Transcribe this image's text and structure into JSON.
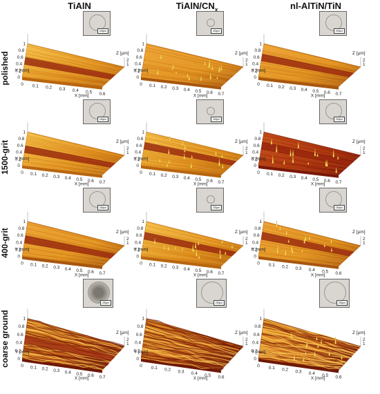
{
  "columns": [
    {
      "title": "TiAlN",
      "sub": ""
    },
    {
      "title": "TiAlN/CN",
      "sub": "x"
    },
    {
      "title": "nl-AlTiN/TiN",
      "sub": ""
    }
  ],
  "rows": [
    "polished",
    "1500-grit",
    "400-grit",
    "coarse ground"
  ],
  "axes": {
    "x_label": "X [mm]",
    "y_label": "Y [mm]",
    "z_label": "Z [µm]",
    "y_label_short": "Y",
    "y_label_unit": "[mm]"
  },
  "inset_scale": "200µm",
  "colors": {
    "base": "#e0901e",
    "light": "#f6c24a",
    "dark": "#8a1c0a",
    "spike": "#ffe770"
  },
  "panels": [
    {
      "row": 0,
      "col": 0,
      "x_ticks": [
        "0",
        "0.1",
        "0.2",
        "0.3",
        "0.4",
        "0.5",
        "0.6"
      ],
      "y_ticks": [
        "0",
        "0.2",
        "0.4",
        "0.6",
        "0.8",
        "1"
      ],
      "z_ticks": [
        "1",
        "2"
      ],
      "track": true,
      "tone": "light",
      "spikes": false
    },
    {
      "row": 0,
      "col": 1,
      "x_ticks": [
        "0",
        "0.1",
        "0.2",
        "0.3",
        "0.4",
        "0.5",
        "0.6",
        "0.7"
      ],
      "y_ticks": [
        "0",
        "0.2",
        "0.4",
        "0.6",
        "0.8",
        "1"
      ],
      "z_ticks": [
        "1",
        "2"
      ],
      "track": false,
      "tone": "mid",
      "spikes": true
    },
    {
      "row": 0,
      "col": 2,
      "x_ticks": [
        "0",
        "0.1",
        "0.2",
        "0.3",
        "0.4",
        "0.5",
        "0.6",
        "0.7"
      ],
      "y_ticks": [
        "0",
        "0.2",
        "0.4",
        "0.6",
        "0.8",
        "1"
      ],
      "z_ticks": [
        "1",
        "2"
      ],
      "track": true,
      "tone": "mid",
      "spikes": false
    },
    {
      "row": 1,
      "col": 0,
      "x_ticks": [
        "0",
        "0.1",
        "0.2",
        "0.3",
        "0.4",
        "0.5",
        "0.6",
        "0.7"
      ],
      "y_ticks": [
        "0",
        "0.2",
        "0.4",
        "0.6",
        "0.8",
        "1"
      ],
      "z_ticks": [
        "1",
        "2"
      ],
      "track": true,
      "tone": "light",
      "spikes": false
    },
    {
      "row": 1,
      "col": 1,
      "x_ticks": [
        "0",
        "0.1",
        "0.2",
        "0.3",
        "0.4",
        "0.5",
        "0.6",
        "0.7"
      ],
      "y_ticks": [
        "0",
        "0.2",
        "0.4",
        "0.6",
        "0.8",
        "1"
      ],
      "z_ticks": [
        "1",
        "2"
      ],
      "track": true,
      "tone": "light",
      "spikes": true
    },
    {
      "row": 1,
      "col": 2,
      "x_ticks": [
        "0",
        "0.1",
        "0.2",
        "0.3",
        "0.4",
        "0.5",
        "0.6",
        "0.7"
      ],
      "y_ticks": [
        "0",
        "0.2",
        "0.4",
        "0.6",
        "0.8",
        "1"
      ],
      "z_ticks": [
        "1",
        "2"
      ],
      "track": true,
      "tone": "dark",
      "spikes": true
    },
    {
      "row": 2,
      "col": 0,
      "x_ticks": [
        "0",
        "0.1",
        "0.2",
        "0.3",
        "0.4",
        "0.5",
        "0.6",
        "0.7"
      ],
      "y_ticks": [
        "0",
        "0.2",
        "0.4",
        "0.6",
        "0.8",
        "1"
      ],
      "z_ticks": [
        "1",
        "2"
      ],
      "track": true,
      "tone": "mid",
      "spikes": false
    },
    {
      "row": 2,
      "col": 1,
      "x_ticks": [
        "0",
        "0.1",
        "0.2",
        "0.3",
        "0.4",
        "0.5",
        "0.6",
        "0.7"
      ],
      "y_ticks": [
        "0",
        "0.2",
        "0.4",
        "0.6",
        "0.8",
        "1"
      ],
      "z_ticks": [
        "1",
        "2"
      ],
      "track": true,
      "tone": "light",
      "spikes": true
    },
    {
      "row": 2,
      "col": 2,
      "x_ticks": [
        "0",
        "0.1",
        "0.2",
        "0.3",
        "0.4",
        "0.5",
        "0.6"
      ],
      "y_ticks": [
        "0",
        "0.2",
        "0.4",
        "0.6",
        "0.8",
        "1"
      ],
      "z_ticks": [
        "1",
        "2"
      ],
      "track": true,
      "tone": "mid",
      "spikes": true
    },
    {
      "row": 3,
      "col": 0,
      "x_ticks": [
        "0",
        "0.1",
        "0.2",
        "0.3",
        "0.4",
        "0.5",
        "0.6",
        "0.7"
      ],
      "y_ticks": [
        "0",
        "0.2",
        "0.4",
        "0.6",
        "0.8",
        "1"
      ],
      "z_ticks": [
        "1",
        "2"
      ],
      "track": true,
      "tone": "rough",
      "spikes": false
    },
    {
      "row": 3,
      "col": 1,
      "x_ticks": [
        "0",
        "0.1",
        "0.2",
        "0.3",
        "0.4",
        "0.5",
        "0.6"
      ],
      "y_ticks": [
        "0",
        "0.2",
        "0.4",
        "0.6",
        "0.8",
        "1"
      ],
      "z_ticks": [
        "1",
        "2"
      ],
      "track": false,
      "tone": "rough",
      "spikes": false
    },
    {
      "row": 3,
      "col": 2,
      "x_ticks": [
        "0",
        "0.1",
        "0.2",
        "0.3",
        "0.4",
        "0.5",
        "0.6"
      ],
      "y_ticks": [
        "0",
        "0.2",
        "0.4",
        "0.6",
        "0.8",
        "1"
      ],
      "z_ticks": [
        "1",
        "2"
      ],
      "track": false,
      "tone": "rough",
      "spikes": true
    }
  ]
}
